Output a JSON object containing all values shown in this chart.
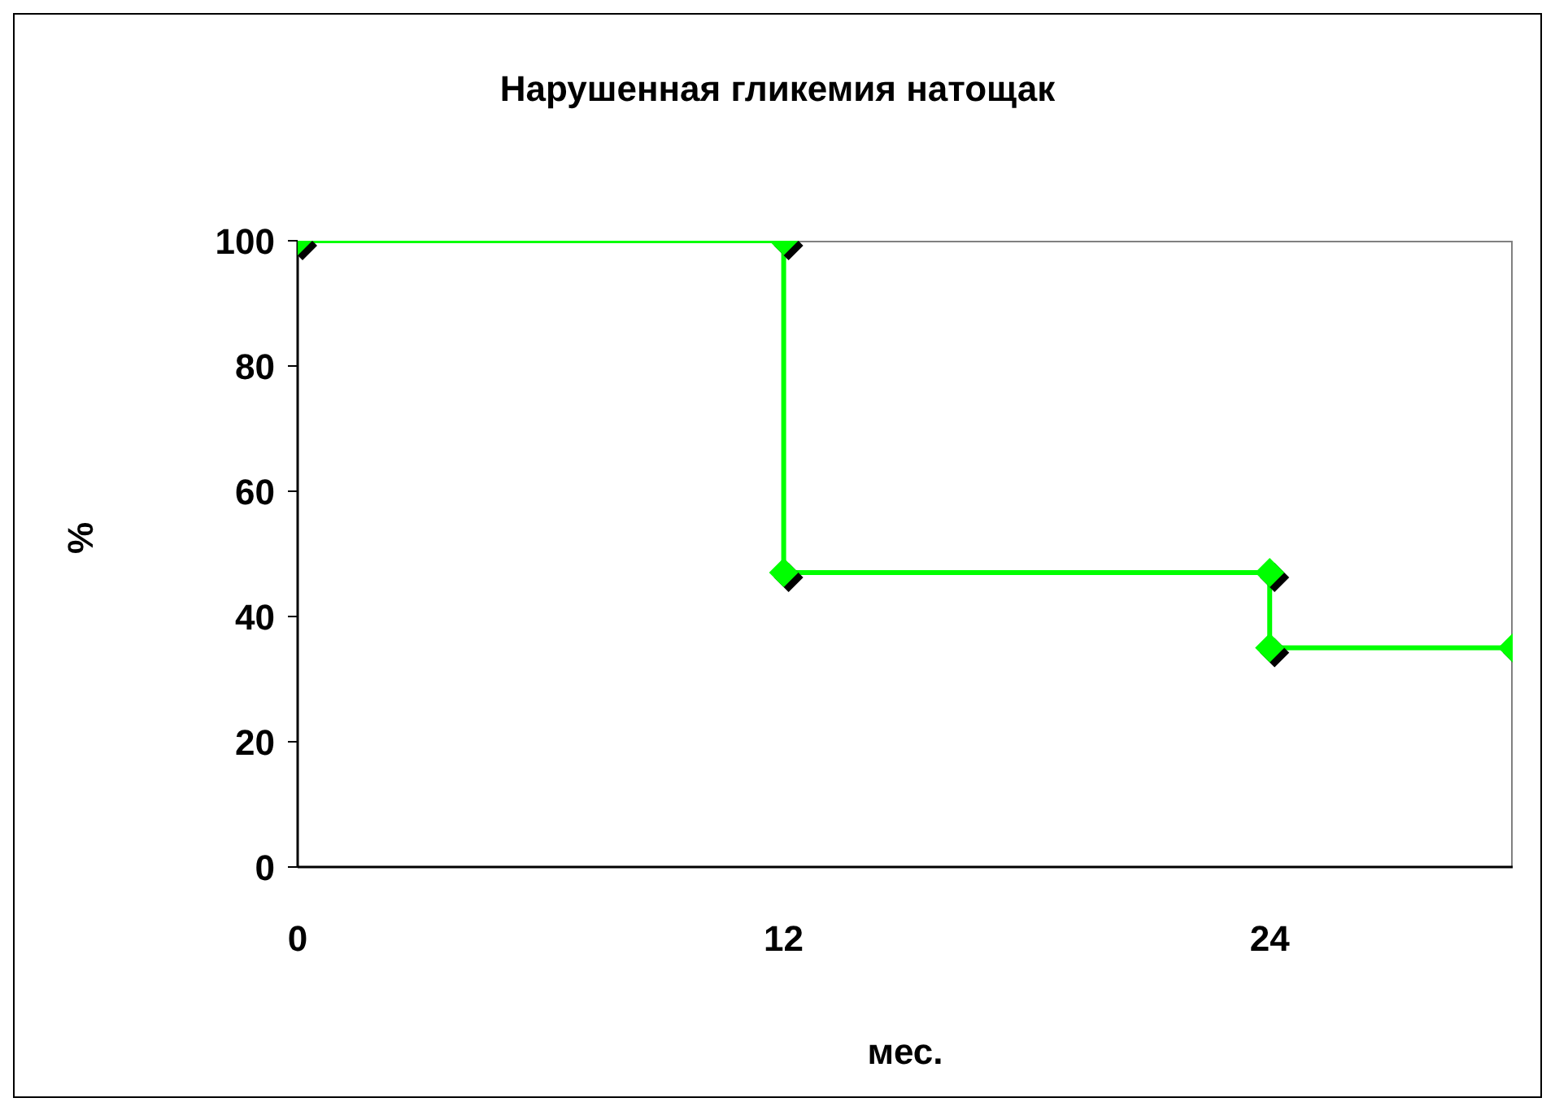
{
  "chart_data": {
    "type": "line",
    "title": "Нарушенная гликемия натощак",
    "xlabel": "мес.",
    "ylabel": "%",
    "x": [
      0,
      12,
      12,
      24,
      24,
      30
    ],
    "series": [
      {
        "color": "#00ff00",
        "values": [
          100,
          100,
          47,
          47,
          35,
          35
        ]
      }
    ],
    "xlim": [
      0,
      30
    ],
    "xticks": [
      0,
      12,
      24
    ],
    "ylim": [
      0,
      100
    ],
    "yticks": [
      0,
      20,
      40,
      60,
      80,
      100
    ],
    "marker": "diamond",
    "line_style": "solid"
  }
}
